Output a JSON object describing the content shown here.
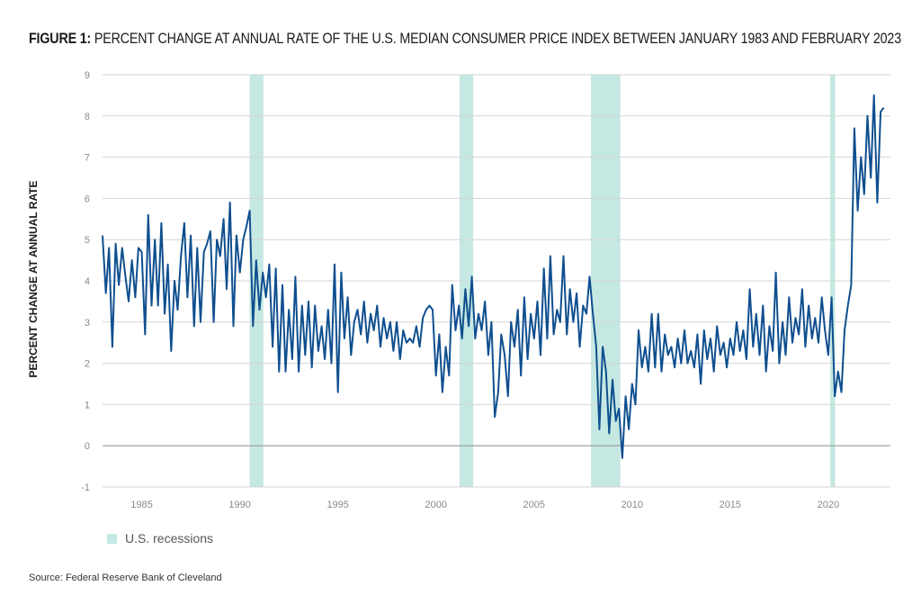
{
  "header": {
    "lead": "FIGURE 1:",
    "text": "PERCENT CHANGE AT ANNUAL RATE OF THE U.S. MEDIAN CONSUMER PRICE INDEX BETWEEN JANUARY 1983 AND FEBRUARY 2023"
  },
  "legend": {
    "label": "U.S. recessions"
  },
  "source": "Source: Federal Reserve Bank of Cleveland",
  "colors": {
    "line": "#0f4f8f",
    "recession": "#c6e8e2",
    "grid": "#d6d6d6",
    "zero": "#9a9a9a"
  },
  "chart_data": {
    "type": "line",
    "ylabel": "PERCENT CHANGE AT ANNUAL RATE",
    "xlabel": "",
    "ylim": [
      -1,
      9
    ],
    "yticks": [
      -1,
      0,
      1,
      2,
      3,
      4,
      5,
      6,
      7,
      8,
      9
    ],
    "xlim": [
      1983,
      2023.17
    ],
    "xticks": [
      1985,
      1990,
      1995,
      2000,
      2005,
      2010,
      2015,
      2020
    ],
    "grid": "horizontal",
    "legend_position": "bottom-left",
    "recessions": [
      [
        1990.5,
        1991.2
      ],
      [
        2001.2,
        2001.9
      ],
      [
        2007.9,
        2009.4
      ],
      [
        2020.1,
        2020.35
      ]
    ],
    "series": [
      {
        "name": "",
        "points": [
          [
            1983.0,
            5.1
          ],
          [
            1983.17,
            3.7
          ],
          [
            1983.33,
            4.8
          ],
          [
            1983.5,
            2.4
          ],
          [
            1983.67,
            4.9
          ],
          [
            1983.83,
            3.9
          ],
          [
            1984.0,
            4.8
          ],
          [
            1984.17,
            4.1
          ],
          [
            1984.33,
            3.5
          ],
          [
            1984.5,
            4.5
          ],
          [
            1984.67,
            3.6
          ],
          [
            1984.83,
            4.8
          ],
          [
            1985.0,
            4.7
          ],
          [
            1985.17,
            2.7
          ],
          [
            1985.33,
            5.6
          ],
          [
            1985.5,
            3.4
          ],
          [
            1985.67,
            5.0
          ],
          [
            1985.83,
            3.4
          ],
          [
            1986.0,
            5.4
          ],
          [
            1986.17,
            3.2
          ],
          [
            1986.33,
            4.4
          ],
          [
            1986.5,
            2.3
          ],
          [
            1986.67,
            4.0
          ],
          [
            1986.83,
            3.3
          ],
          [
            1987.0,
            4.6
          ],
          [
            1987.17,
            5.4
          ],
          [
            1987.33,
            3.6
          ],
          [
            1987.5,
            5.1
          ],
          [
            1987.67,
            2.9
          ],
          [
            1987.83,
            4.8
          ],
          [
            1988.0,
            3.0
          ],
          [
            1988.17,
            4.7
          ],
          [
            1988.33,
            4.9
          ],
          [
            1988.5,
            5.2
          ],
          [
            1988.67,
            3.0
          ],
          [
            1988.83,
            5.0
          ],
          [
            1989.0,
            4.6
          ],
          [
            1989.17,
            5.5
          ],
          [
            1989.33,
            3.8
          ],
          [
            1989.5,
            5.9
          ],
          [
            1989.67,
            2.9
          ],
          [
            1989.83,
            5.1
          ],
          [
            1990.0,
            4.2
          ],
          [
            1990.17,
            5.0
          ],
          [
            1990.33,
            5.3
          ],
          [
            1990.5,
            5.7
          ],
          [
            1990.67,
            2.9
          ],
          [
            1990.83,
            4.5
          ],
          [
            1991.0,
            3.3
          ],
          [
            1991.17,
            4.2
          ],
          [
            1991.33,
            3.6
          ],
          [
            1991.5,
            4.4
          ],
          [
            1991.67,
            2.4
          ],
          [
            1991.83,
            4.3
          ],
          [
            1992.0,
            1.8
          ],
          [
            1992.17,
            3.9
          ],
          [
            1992.33,
            1.8
          ],
          [
            1992.5,
            3.3
          ],
          [
            1992.67,
            2.1
          ],
          [
            1992.83,
            4.1
          ],
          [
            1993.0,
            1.8
          ],
          [
            1993.17,
            3.4
          ],
          [
            1993.33,
            2.2
          ],
          [
            1993.5,
            3.5
          ],
          [
            1993.67,
            1.9
          ],
          [
            1993.83,
            3.4
          ],
          [
            1994.0,
            2.3
          ],
          [
            1994.17,
            2.9
          ],
          [
            1994.33,
            2.1
          ],
          [
            1994.5,
            3.3
          ],
          [
            1994.67,
            2.0
          ],
          [
            1994.83,
            4.4
          ],
          [
            1995.0,
            1.3
          ],
          [
            1995.17,
            4.2
          ],
          [
            1995.33,
            2.6
          ],
          [
            1995.5,
            3.6
          ],
          [
            1995.67,
            2.2
          ],
          [
            1995.83,
            3.0
          ],
          [
            1996.0,
            3.3
          ],
          [
            1996.17,
            2.7
          ],
          [
            1996.33,
            3.5
          ],
          [
            1996.5,
            2.5
          ],
          [
            1996.67,
            3.2
          ],
          [
            1996.83,
            2.8
          ],
          [
            1997.0,
            3.4
          ],
          [
            1997.17,
            2.4
          ],
          [
            1997.33,
            3.1
          ],
          [
            1997.5,
            2.6
          ],
          [
            1997.67,
            3.0
          ],
          [
            1997.83,
            2.3
          ],
          [
            1998.0,
            3.0
          ],
          [
            1998.17,
            2.1
          ],
          [
            1998.33,
            2.8
          ],
          [
            1998.5,
            2.5
          ],
          [
            1998.67,
            2.6
          ],
          [
            1998.83,
            2.5
          ],
          [
            1999.0,
            2.9
          ],
          [
            1999.17,
            2.4
          ],
          [
            1999.33,
            3.1
          ],
          [
            1999.5,
            3.3
          ],
          [
            1999.67,
            3.4
          ],
          [
            1999.83,
            3.3
          ],
          [
            2000.0,
            1.7
          ],
          [
            2000.17,
            2.7
          ],
          [
            2000.33,
            1.3
          ],
          [
            2000.5,
            2.4
          ],
          [
            2000.67,
            1.7
          ],
          [
            2000.83,
            3.9
          ],
          [
            2001.0,
            2.8
          ],
          [
            2001.17,
            3.4
          ],
          [
            2001.33,
            2.6
          ],
          [
            2001.5,
            3.8
          ],
          [
            2001.67,
            2.9
          ],
          [
            2001.83,
            4.1
          ],
          [
            2002.0,
            2.6
          ],
          [
            2002.17,
            3.2
          ],
          [
            2002.33,
            2.8
          ],
          [
            2002.5,
            3.5
          ],
          [
            2002.67,
            2.2
          ],
          [
            2002.83,
            3.0
          ],
          [
            2003.0,
            0.7
          ],
          [
            2003.17,
            1.3
          ],
          [
            2003.33,
            2.7
          ],
          [
            2003.5,
            2.2
          ],
          [
            2003.67,
            1.2
          ],
          [
            2003.83,
            3.0
          ],
          [
            2004.0,
            2.4
          ],
          [
            2004.17,
            3.3
          ],
          [
            2004.33,
            1.7
          ],
          [
            2004.5,
            3.6
          ],
          [
            2004.67,
            2.1
          ],
          [
            2004.83,
            3.2
          ],
          [
            2005.0,
            2.6
          ],
          [
            2005.17,
            3.5
          ],
          [
            2005.33,
            2.2
          ],
          [
            2005.5,
            4.3
          ],
          [
            2005.67,
            2.6
          ],
          [
            2005.83,
            4.6
          ],
          [
            2006.0,
            2.7
          ],
          [
            2006.17,
            3.3
          ],
          [
            2006.33,
            3.0
          ],
          [
            2006.5,
            4.6
          ],
          [
            2006.67,
            2.7
          ],
          [
            2006.83,
            3.8
          ],
          [
            2007.0,
            3.0
          ],
          [
            2007.17,
            3.7
          ],
          [
            2007.33,
            2.4
          ],
          [
            2007.5,
            3.4
          ],
          [
            2007.67,
            3.2
          ],
          [
            2007.83,
            4.1
          ],
          [
            2008.0,
            3.2
          ],
          [
            2008.17,
            2.4
          ],
          [
            2008.33,
            0.4
          ],
          [
            2008.5,
            2.4
          ],
          [
            2008.67,
            1.8
          ],
          [
            2008.83,
            0.3
          ],
          [
            2009.0,
            1.6
          ],
          [
            2009.17,
            0.6
          ],
          [
            2009.33,
            0.9
          ],
          [
            2009.5,
            -0.3
          ],
          [
            2009.67,
            1.2
          ],
          [
            2009.83,
            0.4
          ],
          [
            2010.0,
            1.5
          ],
          [
            2010.17,
            1.0
          ],
          [
            2010.33,
            2.8
          ],
          [
            2010.5,
            1.9
          ],
          [
            2010.67,
            2.4
          ],
          [
            2010.83,
            1.8
          ],
          [
            2011.0,
            3.2
          ],
          [
            2011.17,
            1.9
          ],
          [
            2011.33,
            3.2
          ],
          [
            2011.5,
            1.8
          ],
          [
            2011.67,
            2.7
          ],
          [
            2011.83,
            2.2
          ],
          [
            2012.0,
            2.4
          ],
          [
            2012.17,
            1.9
          ],
          [
            2012.33,
            2.6
          ],
          [
            2012.5,
            2.0
          ],
          [
            2012.67,
            2.8
          ],
          [
            2012.83,
            2.0
          ],
          [
            2013.0,
            2.3
          ],
          [
            2013.17,
            1.9
          ],
          [
            2013.33,
            2.7
          ],
          [
            2013.5,
            1.5
          ],
          [
            2013.67,
            2.8
          ],
          [
            2013.83,
            2.1
          ],
          [
            2014.0,
            2.6
          ],
          [
            2014.17,
            1.8
          ],
          [
            2014.33,
            2.9
          ],
          [
            2014.5,
            2.2
          ],
          [
            2014.67,
            2.5
          ],
          [
            2014.83,
            1.9
          ],
          [
            2015.0,
            2.6
          ],
          [
            2015.17,
            2.2
          ],
          [
            2015.33,
            3.0
          ],
          [
            2015.5,
            2.3
          ],
          [
            2015.67,
            2.8
          ],
          [
            2015.83,
            2.1
          ],
          [
            2016.0,
            3.8
          ],
          [
            2016.17,
            2.4
          ],
          [
            2016.33,
            3.2
          ],
          [
            2016.5,
            2.2
          ],
          [
            2016.67,
            3.4
          ],
          [
            2016.83,
            1.8
          ],
          [
            2017.0,
            2.9
          ],
          [
            2017.17,
            2.3
          ],
          [
            2017.33,
            4.2
          ],
          [
            2017.5,
            2.0
          ],
          [
            2017.67,
            3.0
          ],
          [
            2017.83,
            2.2
          ],
          [
            2018.0,
            3.6
          ],
          [
            2018.17,
            2.5
          ],
          [
            2018.33,
            3.1
          ],
          [
            2018.5,
            2.7
          ],
          [
            2018.67,
            3.8
          ],
          [
            2018.83,
            2.4
          ],
          [
            2019.0,
            3.4
          ],
          [
            2019.17,
            2.6
          ],
          [
            2019.33,
            3.1
          ],
          [
            2019.5,
            2.5
          ],
          [
            2019.67,
            3.6
          ],
          [
            2019.83,
            2.8
          ],
          [
            2020.0,
            2.2
          ],
          [
            2020.17,
            3.6
          ],
          [
            2020.33,
            1.2
          ],
          [
            2020.5,
            1.8
          ],
          [
            2020.67,
            1.3
          ],
          [
            2020.83,
            2.8
          ],
          [
            2021.0,
            3.4
          ],
          [
            2021.17,
            3.9
          ],
          [
            2021.33,
            7.7
          ],
          [
            2021.5,
            5.7
          ],
          [
            2021.67,
            7.0
          ],
          [
            2021.83,
            6.1
          ],
          [
            2022.0,
            8.0
          ],
          [
            2022.17,
            6.5
          ],
          [
            2022.33,
            8.5
          ],
          [
            2022.5,
            5.9
          ],
          [
            2022.67,
            8.1
          ],
          [
            2022.83,
            8.2
          ]
        ]
      }
    ]
  }
}
